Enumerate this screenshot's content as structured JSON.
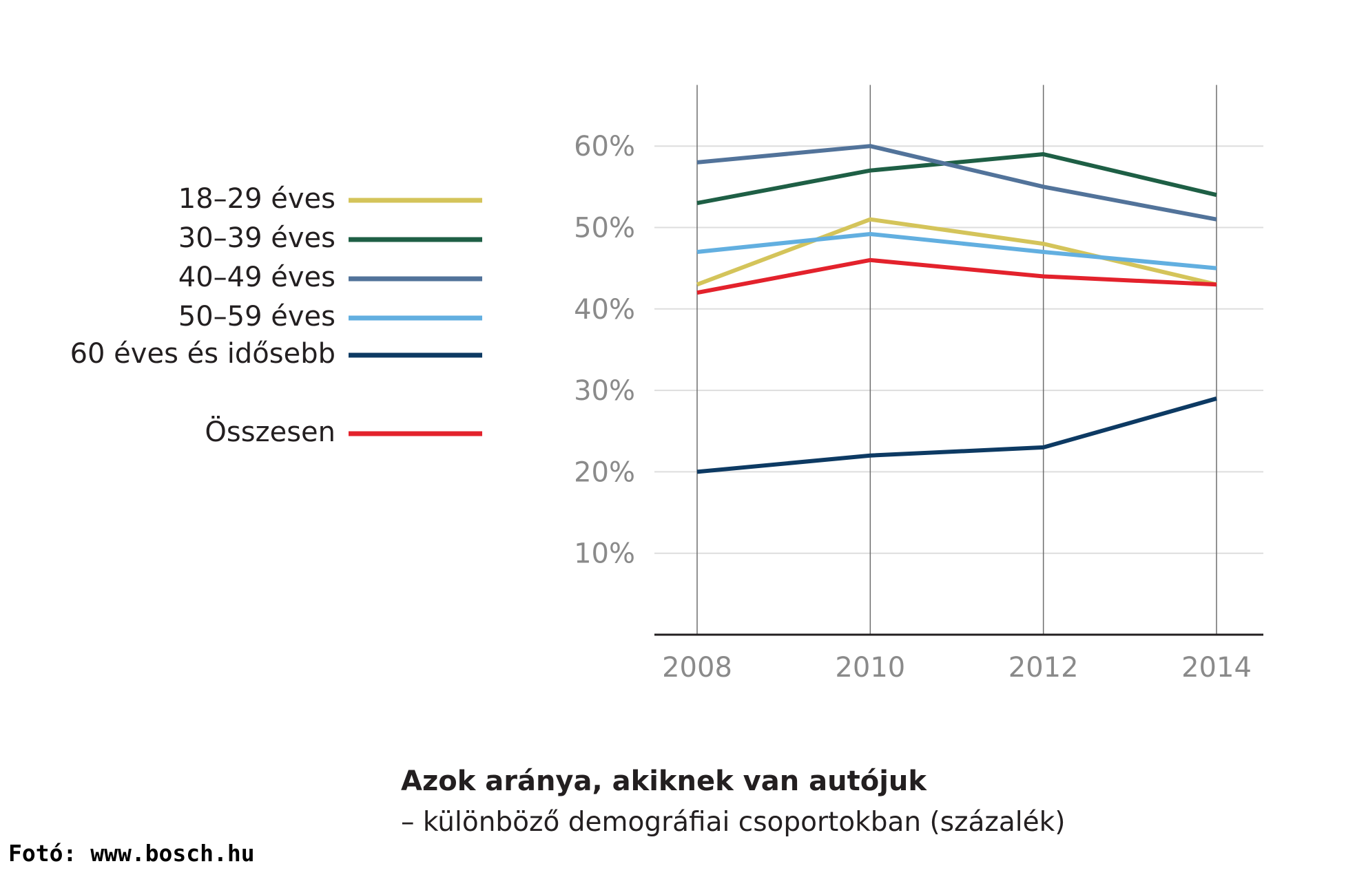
{
  "chart_data": {
    "type": "line",
    "title": "Azok aránya, akiknek van autójuk",
    "subtitle": "– különböző demográfiai csoportokban (százalék)",
    "x": [
      2008,
      2010,
      2012,
      2014
    ],
    "x_tick_labels": [
      "2008",
      "2010",
      "2012",
      "2014"
    ],
    "y_ticks": [
      10,
      20,
      30,
      40,
      50,
      60
    ],
    "y_tick_labels": [
      "10%",
      "20%",
      "30%",
      "40%",
      "50%",
      "60%"
    ],
    "ylim": [
      0,
      67
    ],
    "grid": true,
    "legend_position": "left",
    "series": [
      {
        "name": "18–29 éves",
        "color": "#d4c45a",
        "values": [
          43,
          51,
          48,
          43
        ]
      },
      {
        "name": "30–39 éves",
        "color": "#1e5f45",
        "values": [
          53,
          57,
          59,
          54
        ]
      },
      {
        "name": "40–49 éves",
        "color": "#52739a",
        "values": [
          58,
          60,
          55,
          51
        ]
      },
      {
        "name": "50–59 éves",
        "color": "#62afe0",
        "values": [
          47,
          49.2,
          47,
          45
        ]
      },
      {
        "name": "60 éves és idősebb",
        "color": "#0d3a63",
        "values": [
          20,
          22,
          23,
          29
        ]
      },
      {
        "name": "Összesen",
        "color": "#e3222c",
        "values": [
          42,
          46,
          44,
          43
        ]
      }
    ]
  },
  "photo_credit": "Fotó: www.bosch.hu"
}
